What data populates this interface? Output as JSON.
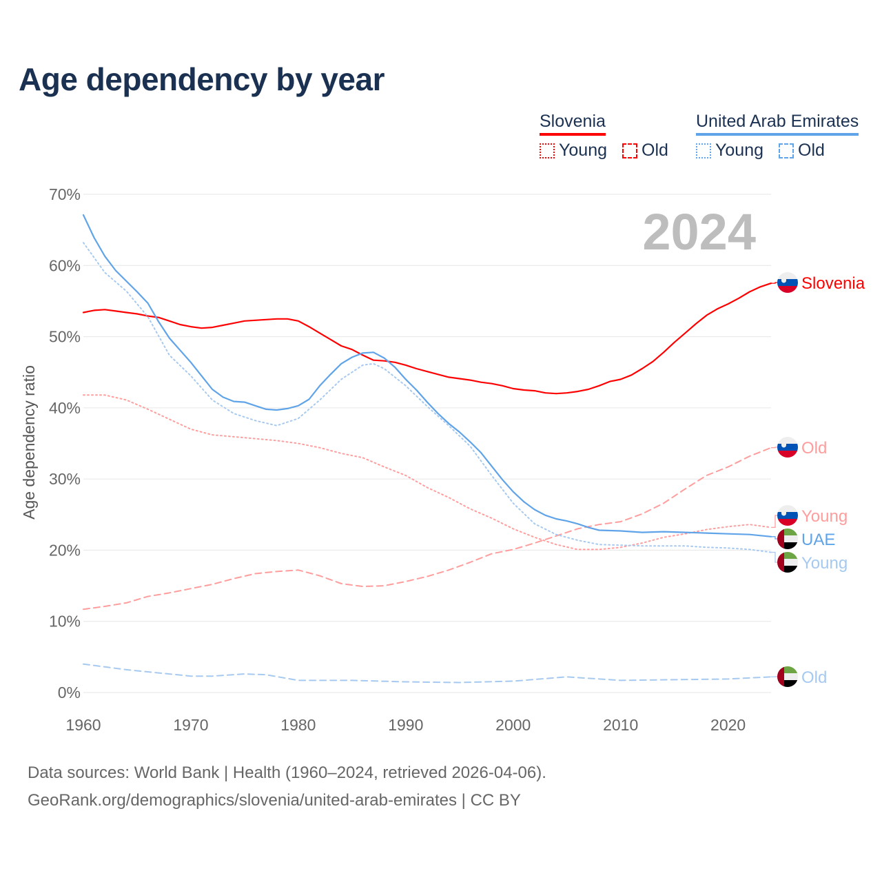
{
  "title": "Age dependency by year",
  "legend": {
    "slovenia": {
      "label": "Slovenia",
      "young": "Young",
      "old": "Old"
    },
    "uae": {
      "label": "United Arab Emirates",
      "young": "Young",
      "old": "Old"
    }
  },
  "year_watermark": "2024",
  "end_labels": {
    "slovenia_total": "Slovenia",
    "slovenia_old": "Old",
    "slovenia_young": "Young",
    "uae_total": "UAE",
    "uae_young": "Young",
    "uae_old": "Old"
  },
  "colors": {
    "slovenia": "#ff0000",
    "slovenia_light": "#ff9d9d",
    "uae": "#5fa3e8",
    "uae_light": "#a6c9f0"
  },
  "footer": {
    "line1": "Data sources: World Bank | Health (1960–2024, retrieved 2026-04-06).",
    "line2": "GeoRank.org/demographics/slovenia/united-arab-emirates | CC BY"
  },
  "chart_data": {
    "type": "line",
    "title": "Age dependency by year",
    "xlabel": "",
    "ylabel": "Age dependency ratio",
    "xlim": [
      1960,
      2024
    ],
    "ylim": [
      0,
      70
    ],
    "x_ticks": [
      "1960",
      "1970",
      "1980",
      "1990",
      "2000",
      "2010",
      "2020"
    ],
    "y_ticks": [
      "0%",
      "10%",
      "20%",
      "30%",
      "40%",
      "50%",
      "60%",
      "70%"
    ],
    "grid": true,
    "legend_position": "top-right",
    "series": [
      {
        "name": "Slovenia",
        "key": "slovenia_total",
        "style": "solid",
        "x": [
          1960,
          1961,
          1962,
          1963,
          1964,
          1965,
          1966,
          1967,
          1968,
          1969,
          1970,
          1971,
          1972,
          1973,
          1974,
          1975,
          1976,
          1977,
          1978,
          1979,
          1980,
          1981,
          1982,
          1983,
          1984,
          1985,
          1986,
          1987,
          1988,
          1989,
          1990,
          1991,
          1992,
          1993,
          1994,
          1995,
          1996,
          1997,
          1998,
          1999,
          2000,
          2001,
          2002,
          2003,
          2004,
          2005,
          2006,
          2007,
          2008,
          2009,
          2010,
          2011,
          2012,
          2013,
          2014,
          2015,
          2016,
          2017,
          2018,
          2019,
          2020,
          2021,
          2022,
          2023,
          2024
        ],
        "values": [
          53.4,
          53.7,
          53.8,
          53.6,
          53.4,
          53.2,
          52.9,
          52.7,
          52.2,
          51.7,
          51.4,
          51.2,
          51.3,
          51.6,
          51.9,
          52.2,
          52.3,
          52.4,
          52.5,
          52.5,
          52.2,
          51.4,
          50.5,
          49.6,
          48.7,
          48.2,
          47.4,
          46.7,
          46.6,
          46.4,
          46.0,
          45.5,
          45.1,
          44.7,
          44.3,
          44.1,
          43.9,
          43.6,
          43.4,
          43.1,
          42.7,
          42.5,
          42.4,
          42.1,
          42.0,
          42.1,
          42.3,
          42.6,
          43.1,
          43.7,
          44.0,
          44.6,
          45.5,
          46.5,
          47.8,
          49.2,
          50.5,
          51.8,
          53.0,
          53.9,
          54.6,
          55.4,
          56.3,
          57.0,
          57.5
        ]
      },
      {
        "name": "Slovenia Young",
        "key": "slovenia_young",
        "style": "dotted",
        "x": [
          1960,
          1962,
          1964,
          1966,
          1968,
          1970,
          1972,
          1975,
          1978,
          1980,
          1982,
          1984,
          1986,
          1988,
          1990,
          1992,
          1994,
          1996,
          1998,
          2000,
          2002,
          2004,
          2006,
          2008,
          2010,
          2012,
          2014,
          2016,
          2018,
          2020,
          2022,
          2024
        ],
        "values": [
          41.8,
          41.8,
          41.1,
          39.8,
          38.4,
          37.0,
          36.2,
          35.8,
          35.4,
          35.0,
          34.4,
          33.6,
          33.0,
          31.7,
          30.5,
          28.8,
          27.4,
          25.8,
          24.5,
          23.0,
          21.8,
          20.8,
          20.1,
          20.1,
          20.4,
          21.0,
          21.8,
          22.3,
          22.9,
          23.3,
          23.6,
          23.2
        ]
      },
      {
        "name": "Slovenia Old",
        "key": "slovenia_old",
        "style": "dashed",
        "x": [
          1960,
          1962,
          1964,
          1966,
          1968,
          1970,
          1972,
          1974,
          1976,
          1978,
          1980,
          1982,
          1984,
          1986,
          1988,
          1990,
          1992,
          1994,
          1996,
          1998,
          2000,
          2002,
          2004,
          2006,
          2008,
          2010,
          2012,
          2014,
          2016,
          2018,
          2020,
          2022,
          2024
        ],
        "values": [
          11.7,
          12.1,
          12.6,
          13.5,
          14.0,
          14.6,
          15.2,
          16.0,
          16.7,
          17.0,
          17.2,
          16.4,
          15.3,
          14.9,
          15.0,
          15.6,
          16.3,
          17.2,
          18.3,
          19.5,
          20.1,
          21.0,
          22.0,
          23.0,
          23.6,
          24.0,
          25.1,
          26.6,
          28.6,
          30.5,
          31.7,
          33.2,
          34.4
        ]
      },
      {
        "name": "UAE",
        "key": "uae_total",
        "style": "solid",
        "x": [
          1960,
          1961,
          1962,
          1963,
          1964,
          1965,
          1966,
          1967,
          1968,
          1969,
          1970,
          1971,
          1972,
          1973,
          1974,
          1975,
          1976,
          1977,
          1978,
          1979,
          1980,
          1981,
          1982,
          1983,
          1984,
          1985,
          1986,
          1987,
          1988,
          1989,
          1990,
          1991,
          1992,
          1993,
          1994,
          1995,
          1996,
          1997,
          1998,
          1999,
          2000,
          2001,
          2002,
          2003,
          2004,
          2005,
          2006,
          2007,
          2008,
          2010,
          2012,
          2014,
          2016,
          2018,
          2020,
          2022,
          2024
        ],
        "values": [
          67.1,
          63.9,
          61.3,
          59.3,
          57.8,
          56.3,
          54.7,
          52.1,
          49.8,
          48.1,
          46.4,
          44.5,
          42.6,
          41.5,
          40.9,
          40.8,
          40.3,
          39.8,
          39.7,
          39.9,
          40.3,
          41.2,
          43.1,
          44.7,
          46.2,
          47.1,
          47.7,
          47.8,
          47.0,
          45.7,
          44.0,
          42.5,
          40.8,
          39.2,
          37.8,
          36.6,
          35.2,
          33.7,
          31.8,
          29.9,
          28.2,
          26.8,
          25.7,
          24.9,
          24.4,
          24.1,
          23.7,
          23.2,
          22.8,
          22.7,
          22.5,
          22.6,
          22.5,
          22.4,
          22.3,
          22.2,
          21.9
        ]
      },
      {
        "name": "UAE Young",
        "key": "uae_young",
        "style": "dotted",
        "x": [
          1960,
          1962,
          1964,
          1966,
          1968,
          1970,
          1972,
          1974,
          1976,
          1978,
          1980,
          1982,
          1984,
          1986,
          1987,
          1988,
          1990,
          1992,
          1994,
          1996,
          1998,
          2000,
          2002,
          2004,
          2006,
          2008,
          2010,
          2012,
          2014,
          2016,
          2018,
          2020,
          2022,
          2024
        ],
        "values": [
          63.2,
          59.0,
          56.4,
          52.8,
          47.4,
          44.5,
          41.1,
          39.2,
          38.2,
          37.5,
          38.5,
          41.1,
          44.0,
          46.0,
          46.2,
          45.5,
          43.1,
          40.2,
          37.5,
          34.6,
          30.5,
          26.6,
          23.7,
          22.2,
          21.4,
          20.8,
          20.7,
          20.6,
          20.6,
          20.6,
          20.4,
          20.3,
          20.1,
          19.7
        ]
      },
      {
        "name": "UAE Old",
        "key": "uae_old",
        "style": "dashed",
        "x": [
          1960,
          1962,
          1964,
          1966,
          1968,
          1970,
          1972,
          1975,
          1977,
          1980,
          1985,
          1990,
          1995,
          2000,
          2005,
          2010,
          2015,
          2020,
          2024
        ],
        "values": [
          4.0,
          3.6,
          3.2,
          2.9,
          2.6,
          2.3,
          2.3,
          2.6,
          2.5,
          1.7,
          1.7,
          1.5,
          1.4,
          1.6,
          2.2,
          1.7,
          1.8,
          1.9,
          2.2
        ]
      }
    ]
  }
}
